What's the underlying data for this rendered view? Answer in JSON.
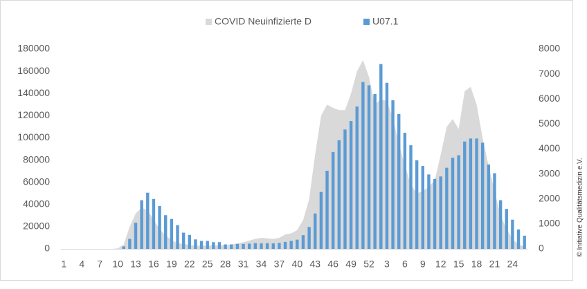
{
  "chart_data": {
    "type": "combo",
    "categories": [
      1,
      null,
      null,
      4,
      null,
      null,
      7,
      null,
      null,
      10,
      null,
      null,
      13,
      null,
      null,
      16,
      null,
      null,
      19,
      null,
      null,
      22,
      null,
      null,
      25,
      null,
      null,
      28,
      null,
      null,
      31,
      null,
      null,
      34,
      null,
      null,
      37,
      null,
      null,
      40,
      null,
      null,
      43,
      null,
      null,
      46,
      null,
      null,
      49,
      null,
      null,
      52,
      null,
      null,
      3,
      null,
      null,
      6,
      null,
      null,
      9,
      null,
      null,
      12,
      null,
      null,
      15,
      null,
      null,
      18,
      null,
      null,
      21,
      null,
      null,
      24,
      null,
      null
    ],
    "series": [
      {
        "name": "COVID Neuinfizierte D",
        "type": "area",
        "color": "#d9d9d9",
        "values": [
          0,
          0,
          0,
          0,
          0,
          0,
          0,
          0,
          0,
          500,
          4000,
          20000,
          32000,
          37000,
          35000,
          26000,
          18000,
          12000,
          8000,
          5000,
          4500,
          3500,
          3000,
          2800,
          3000,
          3200,
          3000,
          3500,
          4000,
          5000,
          6000,
          7500,
          9000,
          10000,
          9500,
          9000,
          10000,
          13000,
          14000,
          17000,
          26000,
          45000,
          85000,
          120000,
          130000,
          127000,
          125000,
          125000,
          140000,
          160000,
          170000,
          155000,
          130000,
          135000,
          133000,
          118000,
          95000,
          75000,
          58000,
          50000,
          52000,
          56000,
          62000,
          85000,
          110000,
          117000,
          108000,
          142000,
          146000,
          130000,
          100000,
          75000,
          52000,
          30000,
          18000,
          9000,
          4000,
          2000
        ]
      },
      {
        "name": "U07.1",
        "type": "bar",
        "axis": "y2",
        "color": "#5b9bd5",
        "values": [
          0,
          0,
          0,
          0,
          0,
          0,
          0,
          0,
          0,
          0,
          100,
          400,
          1050,
          1950,
          2250,
          2000,
          1720,
          1350,
          1200,
          950,
          650,
          560,
          380,
          320,
          320,
          270,
          270,
          180,
          180,
          200,
          200,
          210,
          230,
          220,
          230,
          220,
          240,
          280,
          320,
          370,
          550,
          880,
          1420,
          2280,
          3130,
          3880,
          4350,
          4780,
          5120,
          5700,
          6680,
          6550,
          6200,
          7400,
          6650,
          5950,
          5400,
          4650,
          4150,
          3550,
          3320,
          2980,
          2800,
          2900,
          3250,
          3650,
          3750,
          4300,
          4420,
          4420,
          4250,
          3380,
          3030,
          1950,
          1600,
          1170,
          780,
          530
        ]
      }
    ],
    "ylim": [
      0,
      180000
    ],
    "yticks": [
      0,
      20000,
      40000,
      60000,
      80000,
      100000,
      120000,
      140000,
      160000,
      180000
    ],
    "y2lim": [
      0,
      8000
    ],
    "y2ticks": [
      0,
      1000,
      2000,
      3000,
      4000,
      5000,
      6000,
      7000,
      8000
    ],
    "legend": "top",
    "annotation": "© Initiative Qualitätsmedizin e.V."
  }
}
